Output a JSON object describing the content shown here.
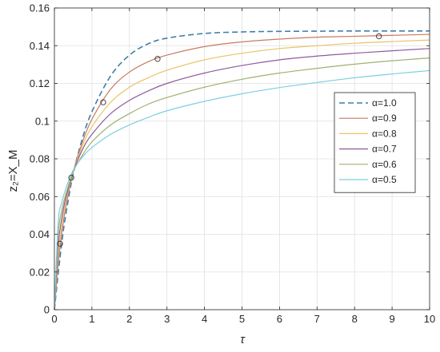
{
  "chart_data": {
    "type": "line",
    "title": "",
    "xlabel": "τ",
    "ylabel": "z₂=X_M",
    "xlim": [
      0,
      10
    ],
    "ylim": [
      0,
      0.16
    ],
    "xticks": [
      0,
      1,
      2,
      3,
      4,
      5,
      6,
      7,
      8,
      9,
      10
    ],
    "yticks": [
      0,
      0.02,
      0.04,
      0.06,
      0.08,
      0.1,
      0.12,
      0.14,
      0.16
    ],
    "xtick_labels": [
      "0",
      "1",
      "2",
      "3",
      "4",
      "5",
      "6",
      "7",
      "8",
      "9",
      "10"
    ],
    "ytick_labels": [
      "0",
      "0.02",
      "0.04",
      "0.06",
      "0.08",
      "0.1",
      "0.12",
      "0.14",
      "0.16"
    ],
    "grid": true,
    "legend_position": "center-right",
    "series": [
      {
        "name": "α=1.0",
        "color": "#3f7fa8",
        "style": "dashed",
        "x": [
          0,
          0.1,
          0.2,
          0.3,
          0.5,
          0.75,
          1,
          1.5,
          2,
          2.5,
          3,
          4,
          5,
          6,
          7,
          8,
          9,
          10
        ],
        "y": [
          0,
          0.019,
          0.036,
          0.05,
          0.072,
          0.091,
          0.105,
          0.124,
          0.135,
          0.141,
          0.144,
          0.1465,
          0.1473,
          0.1476,
          0.1477,
          0.1478,
          0.1478,
          0.1478
        ]
      },
      {
        "name": "α=0.9",
        "color": "#c87a62",
        "x": [
          0,
          0.1,
          0.2,
          0.3,
          0.5,
          0.75,
          1,
          1.5,
          2,
          2.5,
          3,
          4,
          5,
          6,
          7,
          8,
          9,
          10
        ],
        "y": [
          0,
          0.024,
          0.041,
          0.054,
          0.073,
          0.089,
          0.101,
          0.117,
          0.126,
          0.1315,
          0.135,
          0.1395,
          0.142,
          0.1435,
          0.1445,
          0.145,
          0.1455,
          0.146
        ]
      },
      {
        "name": "α=0.8",
        "color": "#e7c464",
        "x": [
          0,
          0.1,
          0.2,
          0.3,
          0.5,
          0.75,
          1,
          1.5,
          2,
          2.5,
          3,
          4,
          5,
          6,
          7,
          8,
          9,
          10
        ],
        "y": [
          0,
          0.029,
          0.045,
          0.057,
          0.073,
          0.087,
          0.097,
          0.11,
          0.118,
          0.123,
          0.127,
          0.1325,
          0.136,
          0.1385,
          0.14,
          0.1413,
          0.1422,
          0.143
        ]
      },
      {
        "name": "α=0.7",
        "color": "#8e5a9c",
        "x": [
          0,
          0.1,
          0.2,
          0.3,
          0.5,
          0.75,
          1,
          1.5,
          2,
          2.5,
          3,
          4,
          5,
          6,
          7,
          8,
          9,
          10
        ],
        "y": [
          0,
          0.034,
          0.049,
          0.059,
          0.073,
          0.085,
          0.093,
          0.104,
          0.111,
          0.116,
          0.12,
          0.1255,
          0.1295,
          0.1325,
          0.1345,
          0.136,
          0.1373,
          0.1385
        ]
      },
      {
        "name": "α=0.6",
        "color": "#9cb26e",
        "x": [
          0,
          0.1,
          0.2,
          0.3,
          0.5,
          0.75,
          1,
          1.5,
          2,
          2.5,
          3,
          4,
          5,
          6,
          7,
          8,
          9,
          10
        ],
        "y": [
          0,
          0.04,
          0.053,
          0.061,
          0.073,
          0.082,
          0.089,
          0.098,
          0.104,
          0.109,
          0.1125,
          0.118,
          0.1222,
          0.1255,
          0.128,
          0.1302,
          0.132,
          0.1335
        ]
      },
      {
        "name": "α=0.5",
        "color": "#7ccfe0",
        "x": [
          0,
          0.1,
          0.2,
          0.3,
          0.5,
          0.75,
          1,
          1.5,
          2,
          2.5,
          3,
          4,
          5,
          6,
          7,
          8,
          9,
          10
        ],
        "y": [
          0,
          0.046,
          0.057,
          0.064,
          0.074,
          0.081,
          0.086,
          0.093,
          0.098,
          0.102,
          0.1055,
          0.1105,
          0.1145,
          0.1178,
          0.1205,
          0.123,
          0.125,
          0.1268
        ]
      }
    ],
    "markers": {
      "shape": "open-circle",
      "x": [
        0.15,
        0.45,
        1.3,
        2.75,
        8.65
      ],
      "y": [
        0.035,
        0.07,
        0.11,
        0.133,
        0.145
      ]
    }
  }
}
